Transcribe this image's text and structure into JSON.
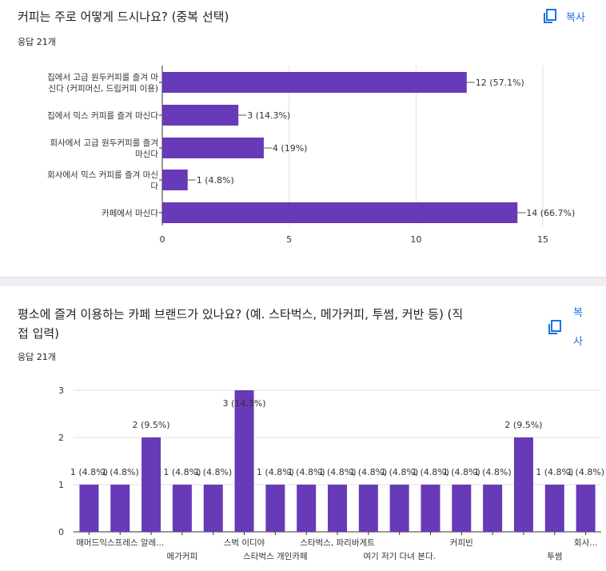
{
  "q1": {
    "title": "커피는 주로 어떻게 드시나요? (중복 선택)",
    "responses": "응답 21개",
    "copy_label": "복사"
  },
  "q2": {
    "title_line1": "평소에 즐겨 이용하는  카페 브랜드가 있나요?  (예. 스타벅스, 메가커피, 투썸, 커반 등) (직",
    "title_line2": "접 입력)",
    "responses": "응답 21개",
    "copy_label_1": "복",
    "copy_label_2": "사"
  },
  "colors": {
    "bar": "#673ab7",
    "accent": "#1a73e8",
    "grid": "#e0e0e0"
  },
  "chart_data": [
    {
      "type": "bar",
      "orientation": "horizontal",
      "categories": [
        [
          "집에서 고급 원두커피를 즐겨 마",
          "신다 (커피머신, 드립커피 이용)"
        ],
        [
          "집에서 믹스 커피를 즐겨 마신다"
        ],
        [
          "회사에서 고급 원두커피를 즐겨",
          "마신다"
        ],
        [
          "회사에서 믹스 커피를 즐겨 마신",
          "다"
        ],
        [
          "카페에서 마신다"
        ]
      ],
      "values": [
        12,
        3,
        4,
        1,
        14
      ],
      "data_labels": [
        "12 (57.1%)",
        "3 (14.3%)",
        "4 (19%)",
        "1 (4.8%)",
        "14 (66.7%)"
      ],
      "xlim": [
        0,
        15
      ],
      "ticks": [
        0,
        5,
        10,
        15
      ],
      "tick_labels": [
        "0",
        "5",
        "10",
        "15"
      ],
      "grid": true
    },
    {
      "type": "bar",
      "orientation": "vertical",
      "values": [
        1,
        1,
        2,
        1,
        1,
        3,
        1,
        1,
        1,
        1,
        1,
        1,
        1,
        1,
        2,
        1,
        1
      ],
      "data_labels": [
        "1 (4.8%)",
        "1 (4.8%)",
        "2 (9.5%)",
        "1 (4.8%)",
        "1 (4.8%)",
        "3 (14.3%)",
        "1 (4.8%)",
        "1 (4.8%)",
        "1 (4.8%)",
        "1 (4.8%)",
        "1 (4.8%)",
        "1 (4.8%)",
        "1 (4.8%)",
        "1 (4.8%)",
        "2 (9.5%)",
        "1 (4.8%)",
        "1 (4.8%)"
      ],
      "category_labels_row1": [
        {
          "bar": 1,
          "text": "매머드익스프레스 알레..."
        },
        {
          "bar": 5,
          "text": "스벅 이디야"
        },
        {
          "bar": 8,
          "text": "스타벅스, 파리바게트"
        },
        {
          "bar": 12,
          "text": "커피빈"
        },
        {
          "bar": 16,
          "text": "회사..."
        }
      ],
      "category_labels_row2": [
        {
          "bar": 3,
          "text": "메가커피"
        },
        {
          "bar": 6,
          "text": "스타벅스 개인카페"
        },
        {
          "bar": 10,
          "text": "여기 저기 다녀 본다."
        },
        {
          "bar": 15,
          "text": "투썸"
        }
      ],
      "ylim": [
        0,
        3
      ],
      "ticks": [
        0,
        1,
        2,
        3
      ],
      "tick_labels": [
        "0",
        "1",
        "2",
        "3"
      ],
      "grid": true
    }
  ]
}
